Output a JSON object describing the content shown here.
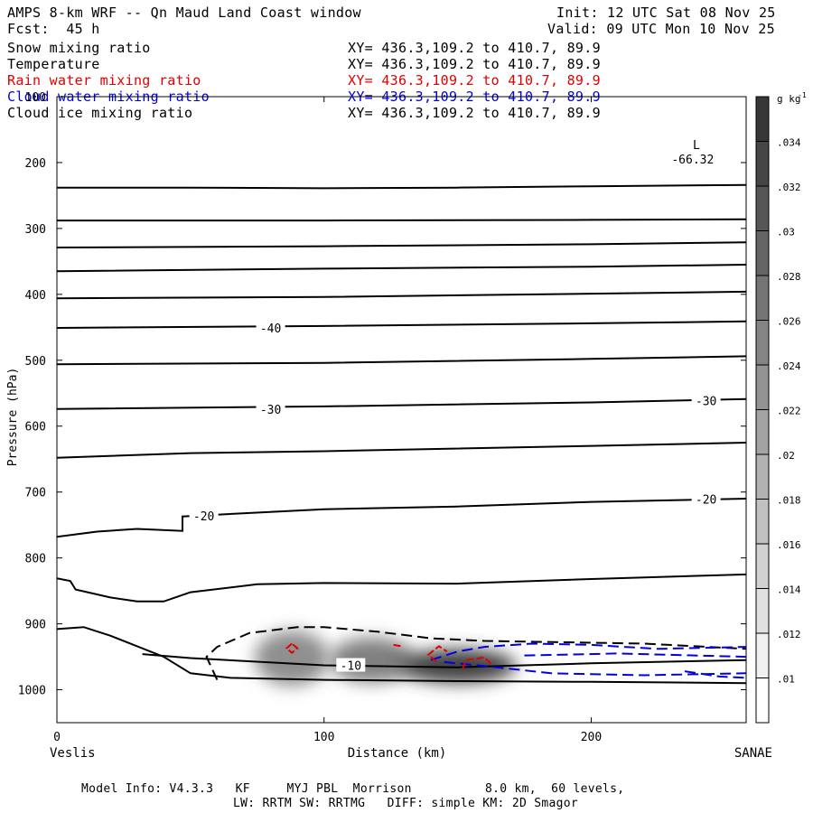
{
  "header": {
    "title": "AMPS 8-km WRF -- Qn Maud Land Coast window",
    "init": "Init: 12 UTC Sat 08 Nov 25",
    "forecast": "Fcst:  45 h",
    "valid": "Valid: 09 UTC Mon 10 Nov 25"
  },
  "fields": [
    {
      "name": "Snow mixing ratio",
      "xy": "XY= 436.3,109.2 to 410.7, 89.9",
      "color": "#000000"
    },
    {
      "name": "Temperature",
      "xy": "XY= 436.3,109.2 to 410.7, 89.9",
      "color": "#000000"
    },
    {
      "name": "Rain water mixing ratio",
      "xy": "XY= 436.3,109.2 to 410.7, 89.9",
      "color": "#e00000"
    },
    {
      "name": "Cloud water mixing ratio",
      "xy": "XY= 436.3,109.2 to 410.7, 89.9",
      "color": "#0000e0"
    },
    {
      "name": "Cloud ice mixing ratio",
      "xy": "XY= 436.3,109.2 to 410.7, 89.9",
      "color": "#000000"
    }
  ],
  "footer": {
    "line1": "Model Info: V4.3.3   KF     MYJ PBL  Morrison          8.0 km,  60 levels,",
    "line2": "LW: RRTM SW: RRTMG   DIFF: simple KM: 2D Smagor"
  },
  "chart_data": {
    "type": "cross-section contour",
    "xlabel": "Distance (km)",
    "ylabel": "Pressure (hPa)",
    "xlim": [
      0,
      258
    ],
    "ylim": [
      1050,
      100
    ],
    "x_ticks": [
      0,
      100,
      200
    ],
    "y_ticks": [
      100,
      200,
      300,
      400,
      500,
      600,
      700,
      800,
      900,
      1000
    ],
    "left_endpoint": "Veslis",
    "right_endpoint": "SANAE",
    "low_marker": {
      "label": "L",
      "value": "-66.32",
      "x": 238,
      "p": 185
    },
    "colorbar": {
      "unit": "g kg",
      "unit_exp": "-1",
      "levels": [
        0.01,
        0.012,
        0.014,
        0.016,
        0.018,
        0.02,
        0.022,
        0.024,
        0.026,
        0.028,
        0.03,
        0.032,
        0.034
      ],
      "labels": [
        ".01",
        ".012",
        ".014",
        ".016",
        ".018",
        ".02",
        ".022",
        ".024",
        ".026",
        ".028",
        ".03",
        ".032",
        ".034"
      ]
    },
    "temperature_contours": [
      {
        "label": "",
        "points": [
          [
            0,
            238
          ],
          [
            50,
            238
          ],
          [
            100,
            239
          ],
          [
            150,
            238
          ],
          [
            200,
            236
          ],
          [
            258,
            234
          ]
        ]
      },
      {
        "label": "",
        "points": [
          [
            0,
            288
          ],
          [
            100,
            288
          ],
          [
            200,
            287
          ],
          [
            258,
            286
          ]
        ]
      },
      {
        "label": "",
        "points": [
          [
            0,
            329
          ],
          [
            100,
            327
          ],
          [
            200,
            324
          ],
          [
            258,
            321
          ]
        ]
      },
      {
        "label": "",
        "points": [
          [
            0,
            365
          ],
          [
            100,
            361
          ],
          [
            200,
            358
          ],
          [
            258,
            355
          ]
        ]
      },
      {
        "label": "",
        "points": [
          [
            0,
            406
          ],
          [
            100,
            404
          ],
          [
            200,
            399
          ],
          [
            258,
            396
          ]
        ]
      },
      {
        "label": "-40",
        "label_at": [
          80,
          451
        ],
        "points": [
          [
            0,
            451
          ],
          [
            100,
            448
          ],
          [
            200,
            444
          ],
          [
            258,
            441
          ]
        ]
      },
      {
        "label": "",
        "points": [
          [
            0,
            506
          ],
          [
            100,
            504
          ],
          [
            200,
            498
          ],
          [
            258,
            494
          ]
        ]
      },
      {
        "label": "-30",
        "label_at": [
          80,
          574
        ],
        "label2_at": [
          243,
          561
        ],
        "points": [
          [
            0,
            574
          ],
          [
            100,
            570
          ],
          [
            200,
            564
          ],
          [
            258,
            559
          ]
        ]
      },
      {
        "label": "",
        "points": [
          [
            0,
            648
          ],
          [
            50,
            641
          ],
          [
            100,
            638
          ],
          [
            200,
            630
          ],
          [
            258,
            625
          ]
        ]
      },
      {
        "label": "-20",
        "label_at": [
          55,
          736
        ],
        "label2_at": [
          243,
          711
        ],
        "points": [
          [
            0,
            768
          ],
          [
            15,
            760
          ],
          [
            30,
            756
          ],
          [
            47,
            759
          ],
          [
            47,
            737
          ],
          [
            100,
            726
          ],
          [
            150,
            722
          ],
          [
            200,
            715
          ],
          [
            258,
            710
          ]
        ]
      },
      {
        "label": "",
        "points": [
          [
            0,
            831
          ],
          [
            5,
            835
          ],
          [
            7,
            848
          ],
          [
            20,
            860
          ],
          [
            30,
            866
          ],
          [
            40,
            866
          ],
          [
            50,
            852
          ],
          [
            75,
            840
          ],
          [
            100,
            838
          ],
          [
            150,
            839
          ],
          [
            200,
            832
          ],
          [
            258,
            825
          ]
        ]
      },
      {
        "label": "-10",
        "label_at": [
          110,
          963
        ],
        "points": [
          [
            0,
            908
          ],
          [
            10,
            905
          ],
          [
            20,
            918
          ],
          [
            40,
            950
          ],
          [
            50,
            975
          ],
          [
            65,
            982
          ],
          [
            100,
            985
          ],
          [
            150,
            987
          ],
          [
            200,
            988
          ],
          [
            258,
            990
          ]
        ]
      },
      {
        "label": "",
        "points": [
          [
            32,
            946
          ],
          [
            50,
            952
          ],
          [
            100,
            963
          ],
          [
            150,
            966
          ],
          [
            200,
            960
          ],
          [
            258,
            955
          ]
        ]
      }
    ],
    "snow_shading": [
      {
        "x": 88,
        "p": 952,
        "rx": 14,
        "rp": 42,
        "value": 0.02
      },
      {
        "x": 118,
        "p": 955,
        "rx": 16,
        "rp": 34,
        "value": 0.022
      },
      {
        "x": 150,
        "p": 964,
        "rx": 22,
        "rp": 26,
        "value": 0.03
      }
    ],
    "cloud_ice_contours": [
      {
        "points": [
          [
            60,
            985
          ],
          [
            56,
            950
          ],
          [
            60,
            935
          ],
          [
            72,
            914
          ],
          [
            90,
            905
          ],
          [
            100,
            905
          ],
          [
            120,
            912
          ],
          [
            140,
            922
          ],
          [
            160,
            926
          ],
          [
            190,
            928
          ],
          [
            220,
            930
          ],
          [
            258,
            938
          ]
        ]
      }
    ],
    "cloud_water_contours": [
      {
        "points": [
          [
            140,
            955
          ],
          [
            150,
            942
          ],
          [
            160,
            935
          ],
          [
            178,
            930
          ],
          [
            200,
            932
          ],
          [
            225,
            938
          ],
          [
            258,
            935
          ]
        ]
      },
      {
        "points": [
          [
            145,
            958
          ],
          [
            160,
            964
          ],
          [
            185,
            975
          ],
          [
            220,
            978
          ],
          [
            258,
            975
          ]
        ]
      },
      {
        "points": [
          [
            175,
            948
          ],
          [
            210,
            945
          ],
          [
            258,
            950
          ]
        ]
      },
      {
        "points": [
          [
            235,
            972
          ],
          [
            248,
            980
          ],
          [
            258,
            982
          ]
        ]
      }
    ],
    "rain_water_contours": [
      {
        "points": [
          [
            88,
            930
          ],
          [
            86,
            937
          ],
          [
            88,
            944
          ],
          [
            90,
            937
          ],
          [
            88,
            930
          ]
        ]
      },
      {
        "points": [
          [
            126,
            932
          ],
          [
            129,
            934
          ]
        ]
      },
      {
        "points": [
          [
            142,
            957
          ],
          [
            139,
            947
          ],
          [
            143,
            934
          ],
          [
            146,
            942
          ]
        ]
      },
      {
        "points": [
          [
            152,
            968
          ],
          [
            153,
            955
          ],
          [
            160,
            951
          ],
          [
            163,
            963
          ]
        ]
      }
    ]
  }
}
